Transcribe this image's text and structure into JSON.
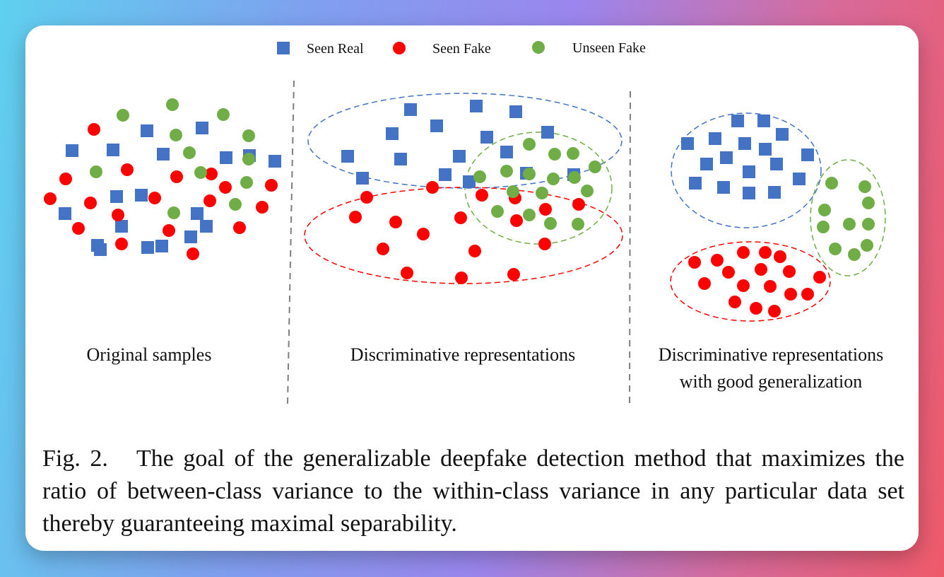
{
  "legend": {
    "seen_real": "Seen Real",
    "seen_fake": "Seen Fake",
    "unseen_fake": "Unseen Fake"
  },
  "panels": {
    "original": {
      "label": "Original samples"
    },
    "discriminative": {
      "label": "Discriminative representations"
    },
    "generalization": {
      "label_line1": "Discriminative representations",
      "label_line2": "with good generalization"
    }
  },
  "caption": {
    "text": "Fig. 2.   The goal of the generalizable deepfake detection method that maximizes the ratio of between-class variance to the within-class variance in any particular data set thereby guaranteeing maximal separability."
  },
  "colors": {
    "seen_real": "#4472c4",
    "seen_fake": "#ff0000",
    "unseen_fake": "#70ad47",
    "divider": "#7f7f7f"
  }
}
